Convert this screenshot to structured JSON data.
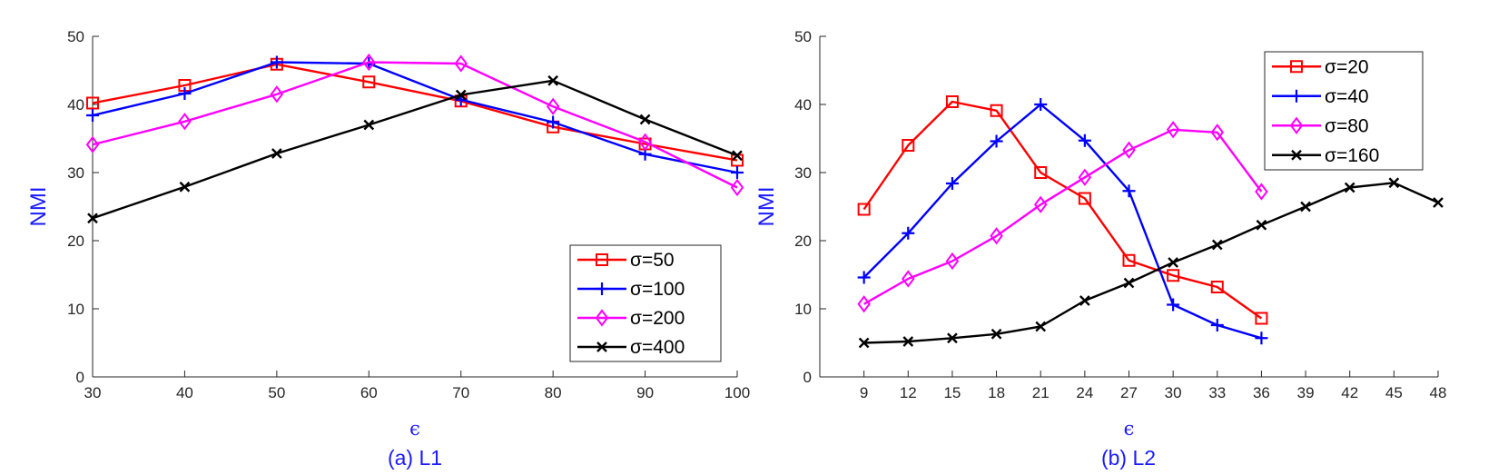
{
  "chart_data": [
    {
      "type": "line",
      "caption": "(a) L1",
      "xlabel": "ϵ",
      "ylabel": "NMI",
      "xlim": [
        30,
        100
      ],
      "ylim": [
        0,
        50
      ],
      "x": [
        30,
        40,
        50,
        60,
        70,
        80,
        90,
        100
      ],
      "xticks": [
        30,
        40,
        50,
        60,
        70,
        80,
        90,
        100
      ],
      "yticks": [
        0,
        10,
        20,
        30,
        40,
        50
      ],
      "legend_position": "bottom-right",
      "series": [
        {
          "name": "σ=50",
          "color": "#ff0000",
          "marker": "square",
          "values": [
            40.2,
            42.8,
            45.9,
            43.3,
            40.5,
            36.7,
            34.2,
            31.8
          ]
        },
        {
          "name": "σ=100",
          "color": "#0000ff",
          "marker": "plus",
          "values": [
            38.4,
            41.6,
            46.2,
            46.0,
            40.7,
            37.4,
            32.7,
            30.0
          ]
        },
        {
          "name": "σ=200",
          "color": "#ff00ff",
          "marker": "diamond",
          "values": [
            34.1,
            37.5,
            41.5,
            46.2,
            46.0,
            39.7,
            34.5,
            27.8
          ]
        },
        {
          "name": "σ=400",
          "color": "#000000",
          "marker": "x",
          "values": [
            23.3,
            27.9,
            32.8,
            37.0,
            41.4,
            43.5,
            37.8,
            32.5
          ]
        }
      ]
    },
    {
      "type": "line",
      "caption": "(b) L2",
      "xlabel": "ϵ",
      "ylabel": "NMI",
      "xlim": [
        6,
        48
      ],
      "ylim": [
        0,
        50
      ],
      "xticks": [
        9,
        12,
        15,
        18,
        21,
        24,
        27,
        30,
        33,
        36,
        39,
        42,
        45,
        48
      ],
      "yticks": [
        0,
        10,
        20,
        30,
        40,
        50
      ],
      "legend_position": "top-right",
      "series": [
        {
          "name": "σ=20",
          "color": "#ff0000",
          "marker": "square",
          "x": [
            9,
            12,
            15,
            18,
            21,
            24,
            27,
            30,
            33,
            36
          ],
          "values": [
            24.6,
            34.0,
            40.4,
            39.1,
            30.0,
            26.2,
            17.1,
            14.9,
            13.2,
            8.6
          ]
        },
        {
          "name": "σ=40",
          "color": "#0000ff",
          "marker": "plus",
          "x": [
            9,
            12,
            15,
            18,
            21,
            24,
            27,
            30,
            33,
            36
          ],
          "values": [
            14.6,
            21.1,
            28.4,
            34.6,
            40.0,
            34.7,
            27.3,
            10.6,
            7.6,
            5.7
          ]
        },
        {
          "name": "σ=80",
          "color": "#ff00ff",
          "marker": "diamond",
          "x": [
            9,
            12,
            15,
            18,
            21,
            24,
            27,
            30,
            33,
            36
          ],
          "values": [
            10.7,
            14.4,
            17.0,
            20.7,
            25.3,
            29.3,
            33.3,
            36.3,
            35.9,
            27.2
          ]
        },
        {
          "name": "σ=160",
          "color": "#000000",
          "marker": "x",
          "x": [
            9,
            12,
            15,
            18,
            21,
            24,
            27,
            30,
            33,
            36,
            39,
            42,
            45,
            48
          ],
          "values": [
            5.0,
            5.2,
            5.7,
            6.3,
            7.4,
            11.2,
            13.8,
            16.8,
            19.4,
            22.3,
            25.0,
            27.8,
            28.5,
            25.6
          ]
        }
      ]
    }
  ]
}
